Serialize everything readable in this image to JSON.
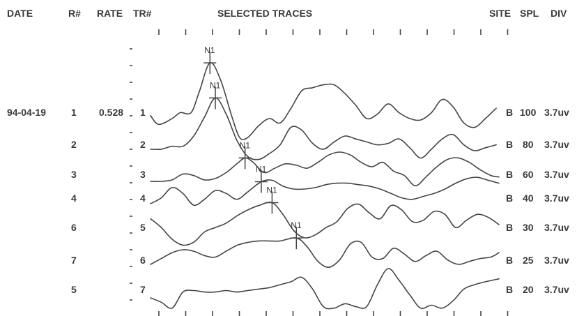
{
  "header": {
    "date": "DATE",
    "rnum": "R#",
    "rate": "RATE",
    "trnum": "TR#",
    "traces": "SELECTED TRACES",
    "site": "SITE",
    "spl": "SPL",
    "div": "DIV"
  },
  "record": {
    "date": "94-04-19",
    "rate": "0.528"
  },
  "peak_label": "N1",
  "rows": [
    {
      "r": "1",
      "tr": "1",
      "site": "B",
      "spl": "100",
      "div": "3.7uv"
    },
    {
      "r": "2",
      "tr": "2",
      "site": "B",
      "spl": "80",
      "div": "3.7uv"
    },
    {
      "r": "3",
      "tr": "3",
      "site": "B",
      "spl": "60",
      "div": "3.7uv"
    },
    {
      "r": "4",
      "tr": "4",
      "site": "B",
      "spl": "40",
      "div": "3.7uv"
    },
    {
      "r": "6",
      "tr": "5",
      "site": "B",
      "spl": "30",
      "div": "3.7uv"
    },
    {
      "r": "7",
      "tr": "6",
      "site": "B",
      "spl": "25",
      "div": "3.7uv"
    },
    {
      "r": "5",
      "tr": "7",
      "site": "B",
      "spl": "20",
      "div": "3.7uv"
    }
  ],
  "chart_data": {
    "type": "line",
    "title": "SELECTED TRACES",
    "x_tick_count": 14,
    "series": [
      {
        "name": "1",
        "peak_x": 2.2,
        "x": [
          0,
          0.3,
          0.8,
          1.1,
          1.5,
          1.8,
          2.2,
          2.6,
          3.0,
          3.3,
          3.6,
          4.0,
          4.4,
          4.8,
          5.2,
          5.6,
          6.0,
          6.4,
          6.8,
          7.2,
          7.6,
          8.0,
          8.4,
          8.8,
          9.2,
          9.6,
          10.0,
          10.4,
          10.8,
          11.2,
          11.6,
          12.0,
          12.4,
          12.8
        ],
        "y": [
          0.3,
          -0.3,
          0.1,
          0.5,
          0.5,
          1.9,
          3.9,
          2.7,
          0.3,
          -1.2,
          -1.2,
          -0.4,
          0.1,
          -0.2,
          0.8,
          2.0,
          2.2,
          2.4,
          2.4,
          1.8,
          1.0,
          0.1,
          0.4,
          1.1,
          0.5,
          0.1,
          0.0,
          0.5,
          1.4,
          0.9,
          -0.2,
          -0.5,
          0.1,
          0.8
        ]
      },
      {
        "name": "2",
        "peak_x": 2.4,
        "x": [
          0,
          0.4,
          0.8,
          1.2,
          1.6,
          2.0,
          2.4,
          2.8,
          3.2,
          3.6,
          4.0,
          4.4,
          4.8,
          5.2,
          5.6,
          6.0,
          6.4,
          6.8,
          7.2,
          7.6,
          8.0,
          8.4,
          8.8,
          9.2,
          9.6,
          10.0,
          10.4,
          10.8,
          11.2,
          11.6,
          12.0,
          12.4,
          12.8
        ],
        "y": [
          0.1,
          0.1,
          0.3,
          0.3,
          1.0,
          2.3,
          3.6,
          2.5,
          0.7,
          -0.4,
          -0.6,
          -0.2,
          0.4,
          1.6,
          1.4,
          0.5,
          0.1,
          0.6,
          1.0,
          0.8,
          0.6,
          0.4,
          0.5,
          0.8,
          0.2,
          -0.5,
          0.1,
          0.8,
          1.1,
          0.4,
          0.0,
          0.2,
          0.4
        ]
      },
      {
        "name": "3",
        "peak_x": 3.5,
        "x": [
          0,
          0.4,
          0.8,
          1.2,
          1.6,
          2.0,
          2.4,
          2.8,
          3.2,
          3.5,
          3.8,
          4.2,
          4.6,
          5.0,
          5.4,
          5.8,
          6.2,
          6.6,
          7.0,
          7.4,
          7.8,
          8.2,
          8.6,
          9.0,
          9.4,
          9.8,
          10.2,
          10.6,
          11.0,
          11.4,
          11.8,
          12.2,
          12.6,
          12.9
        ],
        "y": [
          0.0,
          0.0,
          0.1,
          0.5,
          0.4,
          0.1,
          0.2,
          0.6,
          1.2,
          1.6,
          1.3,
          0.6,
          0.9,
          1.2,
          1.1,
          0.9,
          1.3,
          1.8,
          2.0,
          1.8,
          1.3,
          1.0,
          1.3,
          0.7,
          0.4,
          -0.3,
          0.3,
          1.0,
          1.5,
          1.6,
          1.3,
          0.8,
          0.4,
          0.3
        ]
      },
      {
        "name": "4",
        "peak_x": 4.1,
        "x": [
          0,
          0.4,
          0.8,
          1.2,
          1.6,
          2.0,
          2.4,
          2.8,
          3.2,
          3.6,
          4.1,
          4.5,
          4.9,
          5.3,
          5.7,
          6.1,
          6.5,
          6.9,
          7.3,
          7.7,
          8.1,
          8.5,
          8.9,
          9.3,
          9.7,
          10.1,
          10.5,
          10.9,
          11.3,
          11.7,
          12.1,
          12.5,
          12.9
        ],
        "y": [
          0.0,
          0.4,
          1.1,
          0.7,
          -0.1,
          0.3,
          0.9,
          0.7,
          0.3,
          0.8,
          1.5,
          1.6,
          1.2,
          1.0,
          1.0,
          1.1,
          1.3,
          1.4,
          1.4,
          1.3,
          1.2,
          1.0,
          0.7,
          0.4,
          0.3,
          0.5,
          0.7,
          1.0,
          1.4,
          1.7,
          1.8,
          1.6,
          1.4
        ]
      },
      {
        "name": "5",
        "peak_x": 4.5,
        "x": [
          0,
          0.4,
          0.8,
          1.2,
          1.6,
          2.0,
          2.4,
          2.8,
          3.2,
          3.6,
          4.0,
          4.5,
          4.9,
          5.3,
          5.7,
          6.1,
          6.5,
          6.9,
          7.3,
          7.7,
          8.1,
          8.5,
          8.9,
          9.3,
          9.7,
          10.1,
          10.5,
          10.9,
          11.3,
          11.7,
          12.1,
          12.5,
          12.9
        ],
        "y": [
          0.4,
          -0.2,
          -1.0,
          -1.4,
          -1.2,
          -0.5,
          -0.2,
          0.1,
          0.6,
          1.0,
          1.3,
          1.5,
          0.7,
          -0.4,
          -0.9,
          -0.7,
          -0.2,
          0.2,
          1.1,
          1.4,
          0.8,
          0.4,
          1.3,
          1.0,
          0.2,
          0.3,
          0.9,
          0.7,
          -0.2,
          0.3,
          0.7,
          0.5,
          0.0
        ]
      },
      {
        "name": "6",
        "peak_x": 5.4,
        "x": [
          0,
          0.4,
          0.8,
          1.2,
          1.6,
          2.0,
          2.4,
          2.8,
          3.2,
          3.6,
          4.0,
          4.4,
          4.8,
          5.4,
          5.8,
          6.2,
          6.6,
          7.0,
          7.4,
          7.8,
          8.2,
          8.6,
          9.0,
          9.4,
          9.8,
          10.2,
          10.6,
          11.0,
          11.4,
          11.8,
          12.2,
          12.6,
          12.9
        ],
        "y": [
          0.0,
          0.4,
          0.8,
          1.0,
          0.9,
          0.6,
          0.5,
          0.9,
          1.3,
          1.5,
          1.6,
          1.6,
          1.6,
          1.8,
          1.2,
          0.2,
          -0.2,
          0.3,
          1.4,
          1.5,
          0.5,
          0.4,
          1.1,
          0.7,
          0.2,
          0.6,
          0.9,
          0.3,
          0.0,
          0.2,
          0.4,
          0.5,
          0.8
        ]
      },
      {
        "name": "7",
        "peak_x": null,
        "x": [
          0,
          0.4,
          0.8,
          1.2,
          1.6,
          2.0,
          2.4,
          2.8,
          3.2,
          3.6,
          4.0,
          4.4,
          4.8,
          5.2,
          5.6,
          6.0,
          6.4,
          6.8,
          7.2,
          7.6,
          8.0,
          8.4,
          8.8,
          9.2,
          9.6,
          10.0,
          10.4,
          10.8,
          11.2,
          11.6,
          12.0,
          12.4,
          12.9
        ],
        "y": [
          0.0,
          -0.3,
          -0.7,
          0.4,
          0.5,
          0.4,
          0.4,
          0.5,
          0.4,
          0.5,
          0.6,
          0.7,
          0.9,
          1.1,
          1.4,
          0.6,
          -0.6,
          -0.7,
          -0.4,
          -0.6,
          -0.6,
          0.9,
          2.0,
          1.2,
          0.2,
          -0.7,
          -0.5,
          -0.7,
          -0.2,
          0.6,
          0.9,
          1.1,
          1.3
        ]
      }
    ]
  }
}
